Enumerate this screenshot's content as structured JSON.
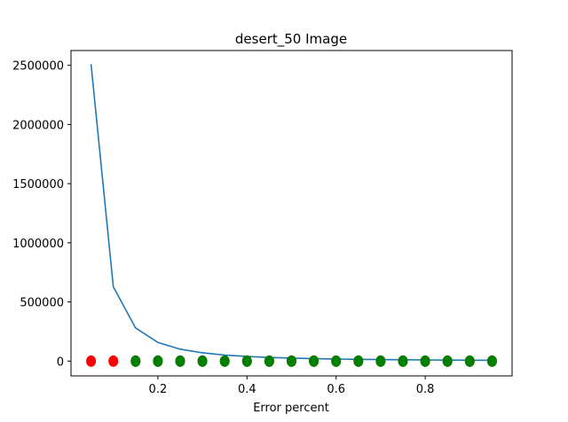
{
  "chart_data": {
    "type": "line",
    "title": "desert_50 Image",
    "xlabel": "Error percent",
    "ylabel": "",
    "xlim": [
      0.005,
      0.995
    ],
    "ylim": [
      -125000,
      2625000
    ],
    "grid": false,
    "x_ticks": [
      0.2,
      0.4,
      0.6,
      0.8
    ],
    "x_tick_labels": [
      "0.2",
      "0.4",
      "0.6",
      "0.8"
    ],
    "y_ticks": [
      0,
      500000,
      1000000,
      1500000,
      2000000,
      2500000
    ],
    "y_tick_labels": [
      "0",
      "500000",
      "1000000",
      "1500000",
      "2000000",
      "2500000"
    ],
    "x": [
      0.05,
      0.1,
      0.15,
      0.2,
      0.25,
      0.3,
      0.35,
      0.4,
      0.45,
      0.5,
      0.55,
      0.6,
      0.65,
      0.7,
      0.75,
      0.8,
      0.85,
      0.9,
      0.95
    ],
    "series": [
      {
        "kind": "line",
        "color": "#1f77b4",
        "values": [
          2510000,
          628000,
          280000,
          158000,
          101000,
          70000,
          51000,
          39000,
          31000,
          25000,
          20800,
          17500,
          14900,
          12800,
          11200,
          9800,
          8700,
          7800,
          7000
        ]
      },
      {
        "kind": "scatter",
        "color": "#ff0000",
        "values": [
          0,
          0,
          0,
          0,
          0,
          0,
          0,
          0,
          0,
          0,
          0,
          0,
          0,
          0,
          0,
          0,
          0,
          0,
          0
        ]
      },
      {
        "kind": "scatter",
        "color": "#008000",
        "x": [
          0.15,
          0.2,
          0.25,
          0.3,
          0.35,
          0.4,
          0.45,
          0.5,
          0.55,
          0.6,
          0.65,
          0.7,
          0.75,
          0.8,
          0.85,
          0.9,
          0.95
        ],
        "values": [
          0,
          0,
          0,
          0,
          0,
          0,
          0,
          0,
          0,
          0,
          0,
          0,
          0,
          0,
          0,
          0,
          0
        ]
      }
    ]
  }
}
